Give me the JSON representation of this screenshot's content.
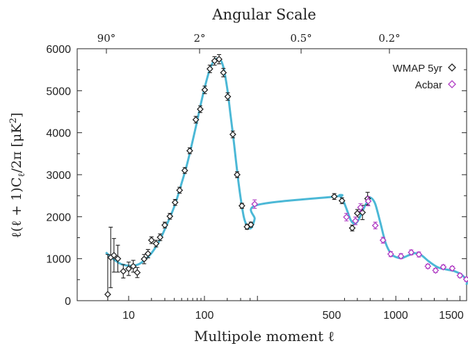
{
  "chart_data": {
    "type": "scatter",
    "title": "Angular Scale",
    "xlabel": "Multipole moment ℓ",
    "ylabel": "ℓ(ℓ + 1)C",
    "ylabel_sub": "ℓ",
    "ylabel_tail": "/2π [μK",
    "ylabel_sup": "2",
    "ylabel_close": "]",
    "x_scale": "mixed (log below 500, linear above 500)",
    "xlim": [
      5,
      1700
    ],
    "ylim": [
      0,
      6000
    ],
    "bottom_tick_labels": [
      "10",
      "100",
      "500",
      "1000",
      "1500"
    ],
    "top_tick_labels": [
      "90°",
      "2°",
      "0.5°",
      "0.2°"
    ],
    "y_tick_labels": [
      "0",
      "1000",
      "2000",
      "3000",
      "4000",
      "5000",
      "6000"
    ],
    "y_ticks": [
      0,
      1000,
      2000,
      3000,
      4000,
      5000,
      6000
    ],
    "legend_position": "top-right",
    "grid": false,
    "series": [
      {
        "name": "WMAP 5yr",
        "color": "#222222",
        "marker": "diamond-open",
        "points": [
          [
            5.3,
            150,
            950
          ],
          [
            5.8,
            1030,
            720
          ],
          [
            6.4,
            1080,
            400
          ],
          [
            7.2,
            1000,
            320
          ],
          [
            8.5,
            700,
            160
          ],
          [
            10,
            760,
            160
          ],
          [
            11.5,
            820,
            140
          ],
          [
            13,
            670,
            120
          ],
          [
            16,
            990,
            110
          ],
          [
            18,
            1120,
            100
          ],
          [
            20,
            1440,
            80
          ],
          [
            23,
            1360,
            80
          ],
          [
            26,
            1510,
            80
          ],
          [
            30,
            1800,
            70
          ],
          [
            35,
            2010,
            70
          ],
          [
            41,
            2340,
            70
          ],
          [
            47,
            2630,
            70
          ],
          [
            55,
            3100,
            70
          ],
          [
            64,
            3570,
            70
          ],
          [
            77,
            4310,
            80
          ],
          [
            88,
            4560,
            80
          ],
          [
            101,
            5020,
            90
          ],
          [
            118,
            5520,
            90
          ],
          [
            136,
            5710,
            100
          ],
          [
            156,
            5750,
            110
          ],
          [
            178,
            5430,
            100
          ],
          [
            203,
            4860,
            90
          ],
          [
            237,
            3960,
            80
          ],
          [
            270,
            3000,
            70
          ],
          [
            312,
            2260,
            60
          ],
          [
            364,
            1760,
            60
          ],
          [
            410,
            1810,
            60
          ],
          [
            520,
            2480,
            70
          ],
          [
            580,
            2380,
            70
          ],
          [
            660,
            1730,
            70
          ],
          [
            700,
            2080,
            90
          ],
          [
            740,
            2100,
            170
          ],
          [
            780,
            2430,
            150
          ]
        ]
      },
      {
        "name": "Acbar",
        "color": "#b03cc4",
        "marker": "diamond-open",
        "points": [
          [
            460,
            2300,
            100
          ],
          [
            615,
            1990,
            90
          ],
          [
            685,
            1900,
            90
          ],
          [
            725,
            2220,
            90
          ],
          [
            785,
            2370,
            110
          ],
          [
            840,
            1790,
            80
          ],
          [
            900,
            1440,
            70
          ],
          [
            960,
            1110,
            60
          ],
          [
            1040,
            1060,
            60
          ],
          [
            1120,
            1150,
            60
          ],
          [
            1180,
            1100,
            60
          ],
          [
            1250,
            820,
            50
          ],
          [
            1310,
            720,
            50
          ],
          [
            1370,
            800,
            50
          ],
          [
            1440,
            770,
            50
          ],
          [
            1500,
            600,
            50
          ],
          [
            1550,
            510,
            50
          ],
          [
            1610,
            430,
            50
          ],
          [
            1680,
            380,
            50
          ]
        ]
      }
    ],
    "model_curve": {
      "color": "#4bb8d6",
      "points": [
        [
          5,
          1150
        ],
        [
          6,
          1020
        ],
        [
          7,
          930
        ],
        [
          8,
          870
        ],
        [
          10,
          830
        ],
        [
          12,
          840
        ],
        [
          14,
          880
        ],
        [
          17,
          1000
        ],
        [
          20,
          1130
        ],
        [
          25,
          1400
        ],
        [
          30,
          1700
        ],
        [
          40,
          2240
        ],
        [
          50,
          2800
        ],
        [
          60,
          3300
        ],
        [
          75,
          4050
        ],
        [
          90,
          4700
        ],
        [
          100,
          5050
        ],
        [
          115,
          5450
        ],
        [
          130,
          5680
        ],
        [
          150,
          5770
        ],
        [
          165,
          5720
        ],
        [
          180,
          5520
        ],
        [
          200,
          5050
        ],
        [
          220,
          4450
        ],
        [
          240,
          3900
        ],
        [
          260,
          3350
        ],
        [
          280,
          2850
        ],
        [
          300,
          2450
        ],
        [
          330,
          2000
        ],
        [
          360,
          1800
        ],
        [
          400,
          1720
        ],
        [
          430,
          1780
        ],
        [
          460,
          1950
        ],
        [
          500,
          2280
        ],
        [
          530,
          2480
        ],
        [
          560,
          2510
        ],
        [
          590,
          2380
        ],
        [
          620,
          2150
        ],
        [
          650,
          1910
        ],
        [
          680,
          1830
        ],
        [
          710,
          1930
        ],
        [
          750,
          2200
        ],
        [
          790,
          2420
        ],
        [
          810,
          2440
        ],
        [
          840,
          2300
        ],
        [
          880,
          1850
        ],
        [
          920,
          1380
        ],
        [
          960,
          1130
        ],
        [
          1000,
          1040
        ],
        [
          1050,
          1020
        ],
        [
          1100,
          1080
        ],
        [
          1150,
          1130
        ],
        [
          1200,
          1080
        ],
        [
          1260,
          930
        ],
        [
          1330,
          790
        ],
        [
          1400,
          740
        ],
        [
          1460,
          700
        ],
        [
          1520,
          600
        ],
        [
          1600,
          470
        ],
        [
          1700,
          380
        ]
      ]
    }
  }
}
